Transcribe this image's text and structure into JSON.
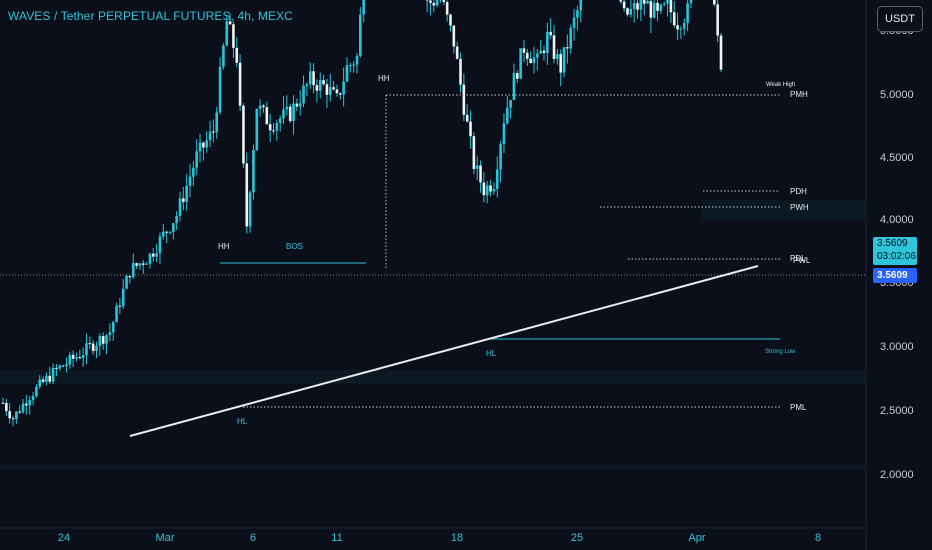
{
  "header": {
    "title": "WAVES / Tether PERPETUAL FUTURES, 4h, MEXC",
    "currency_button": "USDT"
  },
  "price_badge": {
    "price": "3.5609",
    "countdown": "03:02:06",
    "last_price": "3.5609"
  },
  "colors": {
    "background": "#0b0f19",
    "accent": "#2ec4d9",
    "candle": "#26c6da",
    "level_line": "#c0c4cc",
    "trendline": "#e8eaf0",
    "badge_primary": "#2962ff"
  },
  "chart_data": {
    "type": "candlestick",
    "title": "WAVES / Tether PERPETUAL FUTURES, 4h, MEXC",
    "x_ticks": [
      "24",
      "Mar",
      "6",
      "11",
      "18",
      "25",
      "Apr",
      "8"
    ],
    "y_ticks": [
      "2.0000",
      "2.5000",
      "3.0000",
      "3.5000",
      "4.0000",
      "4.5000",
      "5.0000",
      "5.5000"
    ],
    "ylim": [
      1.85,
      5.5
    ],
    "grid": false,
    "trend_anchors": [
      {
        "x": 0,
        "y": 2.28
      },
      {
        "x": 3,
        "y": 2.22
      },
      {
        "x": 8,
        "y": 2.31
      },
      {
        "x": 16,
        "y": 2.41
      },
      {
        "x": 24,
        "y": 2.48
      },
      {
        "x": 32,
        "y": 2.56
      },
      {
        "x": 38,
        "y": 2.8
      },
      {
        "x": 44,
        "y": 2.86
      },
      {
        "x": 52,
        "y": 3.02
      },
      {
        "x": 58,
        "y": 3.25
      },
      {
        "x": 63,
        "y": 3.35
      },
      {
        "x": 67,
        "y": 3.78
      },
      {
        "x": 70,
        "y": 3.64
      },
      {
        "x": 73,
        "y": 2.98
      },
      {
        "x": 76,
        "y": 3.45
      },
      {
        "x": 80,
        "y": 3.38
      },
      {
        "x": 86,
        "y": 3.42
      },
      {
        "x": 92,
        "y": 3.55
      },
      {
        "x": 97,
        "y": 3.52
      },
      {
        "x": 100,
        "y": 3.47
      },
      {
        "x": 103,
        "y": 3.6
      },
      {
        "x": 106,
        "y": 3.64
      },
      {
        "x": 108,
        "y": 3.95
      },
      {
        "x": 110,
        "y": 4.35
      },
      {
        "x": 112,
        "y": 4.65
      },
      {
        "x": 114,
        "y": 4.72
      },
      {
        "x": 116,
        "y": 4.45
      },
      {
        "x": 118,
        "y": 4.3
      },
      {
        "x": 121,
        "y": 4.2
      },
      {
        "x": 124,
        "y": 4.15
      },
      {
        "x": 127,
        "y": 3.85
      },
      {
        "x": 131,
        "y": 3.88
      },
      {
        "x": 135,
        "y": 3.7
      },
      {
        "x": 138,
        "y": 3.45
      },
      {
        "x": 141,
        "y": 3.22
      },
      {
        "x": 144,
        "y": 3.12
      },
      {
        "x": 147,
        "y": 3.15
      },
      {
        "x": 150,
        "y": 3.4
      },
      {
        "x": 153,
        "y": 3.55
      },
      {
        "x": 156,
        "y": 3.68
      },
      {
        "x": 160,
        "y": 3.62
      },
      {
        "x": 163,
        "y": 3.72
      },
      {
        "x": 167,
        "y": 3.6
      },
      {
        "x": 171,
        "y": 3.78
      },
      {
        "x": 174,
        "y": 3.9
      },
      {
        "x": 177,
        "y": 4.02
      },
      {
        "x": 180,
        "y": 4.06
      },
      {
        "x": 183,
        "y": 3.98
      },
      {
        "x": 186,
        "y": 3.8
      },
      {
        "x": 189,
        "y": 3.83
      },
      {
        "x": 192,
        "y": 3.86
      },
      {
        "x": 196,
        "y": 3.8
      },
      {
        "x": 199,
        "y": 3.84
      },
      {
        "x": 202,
        "y": 3.78
      },
      {
        "x": 205,
        "y": 3.82
      },
      {
        "x": 208,
        "y": 4.02
      },
      {
        "x": 210,
        "y": 4.12
      },
      {
        "x": 212,
        "y": 4.05
      },
      {
        "x": 214,
        "y": 3.72
      },
      {
        "x": 215,
        "y": 3.56
      }
    ],
    "annotations": [
      {
        "text": "HH",
        "x": 218,
        "y": 249,
        "cls": "ann"
      },
      {
        "text": "BOS",
        "x": 286,
        "y": 249,
        "cls": "annc"
      },
      {
        "text": "HH",
        "x": 378,
        "y": 81,
        "cls": "ann"
      },
      {
        "text": "HL",
        "x": 237,
        "y": 424,
        "cls": "annc"
      },
      {
        "text": "HL",
        "x": 486,
        "y": 356,
        "cls": "annc"
      },
      {
        "text": "Weak High",
        "x": 766,
        "y": 86,
        "cls": "ann5"
      },
      {
        "text": "PMH",
        "x": 790,
        "y": 97,
        "cls": "ann"
      },
      {
        "text": "PDH",
        "x": 790,
        "y": 194,
        "cls": "ann"
      },
      {
        "text": "PWH",
        "x": 790,
        "y": 210,
        "cls": "ann"
      },
      {
        "text": "PDL",
        "x": 790,
        "y": 261,
        "cls": "ann"
      },
      {
        "text": "PWL",
        "x": 793,
        "y": 263,
        "cls": "ann"
      },
      {
        "text": "Strong Low",
        "x": 765,
        "y": 353,
        "cls": "annc5"
      },
      {
        "text": "PML",
        "x": 790,
        "y": 410,
        "cls": "ann"
      }
    ]
  }
}
